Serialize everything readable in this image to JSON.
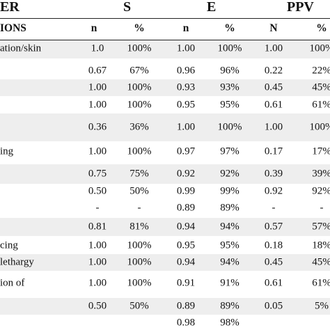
{
  "header": {
    "group_labels": [
      "ER",
      "S",
      "E",
      "PPV"
    ],
    "column_labels": [
      "IONS",
      "n",
      "%",
      "n",
      "%",
      "N",
      "%"
    ]
  },
  "rows": [
    {
      "label": "ation/skin",
      "values": [
        "1.0",
        "100%",
        "1.00",
        "100%",
        "1.00",
        "100%"
      ]
    },
    {
      "label": "",
      "values": [
        "0.67",
        "67%",
        "0.96",
        "96%",
        "0.22",
        "22%"
      ]
    },
    {
      "label": "",
      "values": [
        "1.00",
        "100%",
        "0.93",
        "93%",
        "0.45",
        "45%"
      ]
    },
    {
      "label": "",
      "values": [
        "1.00",
        "100%",
        "0.95",
        "95%",
        "0.61",
        "61%"
      ]
    },
    {
      "label": "",
      "values": [
        "0.36",
        "36%",
        "1.00",
        "100%",
        "1.00",
        "100%"
      ]
    },
    {
      "label": "ing",
      "values": [
        "1.00",
        "100%",
        "0.97",
        "97%",
        "0.17",
        "17%"
      ]
    },
    {
      "label": "",
      "values": [
        "0.75",
        "75%",
        "0.92",
        "92%",
        "0.39",
        "39%"
      ]
    },
    {
      "label": "",
      "values": [
        "0.50",
        "50%",
        "0.99",
        "99%",
        "0.92",
        "92%"
      ]
    },
    {
      "label": "",
      "values": [
        "-",
        "-",
        "0.89",
        "89%",
        "-",
        "-"
      ]
    },
    {
      "label": "",
      "values": [
        "0.81",
        "81%",
        "0.94",
        "94%",
        "0.57",
        "57%"
      ]
    },
    {
      "label": "cing",
      "values": [
        "1.00",
        "100%",
        "0.95",
        "95%",
        "0.18",
        "18%"
      ]
    },
    {
      "label": "lethargy",
      "values": [
        "1.00",
        "100%",
        "0.94",
        "94%",
        "0.45",
        "45%"
      ]
    },
    {
      "label": "ion of",
      "values": [
        "1.00",
        "100%",
        "0.91",
        "91%",
        "0.61",
        "61%"
      ]
    },
    {
      "label": "",
      "values": [
        "0.50",
        "50%",
        "0.89",
        "89%",
        "0.05",
        "5%"
      ]
    },
    {
      "label": "",
      "values": [
        "",
        "",
        "0.98",
        "98%",
        "",
        ""
      ]
    }
  ],
  "colors": {
    "band": "#eeeeee",
    "text": "#111111",
    "rule": "#222222"
  }
}
